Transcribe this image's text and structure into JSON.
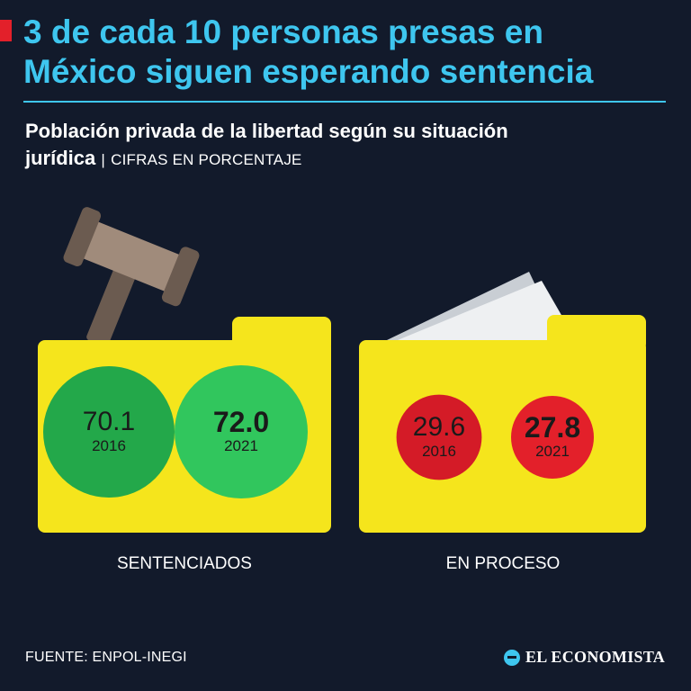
{
  "headline": {
    "line1": "3 de cada 10 personas presas en",
    "line2": "México siguen esperando sentencia"
  },
  "subtitle": {
    "bold_line1": "Población privada de la libertad según su situación",
    "bold_line2": "jurídica",
    "separator": "|",
    "unit": "CIFRAS EN PORCENTAJE"
  },
  "chart_data": {
    "type": "bubble",
    "unit": "%",
    "categories": [
      "SENTENCIADOS",
      "EN PROCESO"
    ],
    "years": [
      "2016",
      "2021"
    ],
    "groups": [
      {
        "category": "SENTENCIADOS",
        "color": "#31c65d",
        "color_dark": "#23a84a",
        "points": [
          {
            "year": "2016",
            "value": 70.1,
            "label": "70.1"
          },
          {
            "year": "2021",
            "value": 72.0,
            "label": "72.0"
          }
        ]
      },
      {
        "category": "EN PROCESO",
        "color": "#e3202a",
        "color_dark": "#d41b27",
        "points": [
          {
            "year": "2016",
            "value": 29.6,
            "label": "29.6"
          },
          {
            "year": "2021",
            "value": 27.8,
            "label": "27.8"
          }
        ]
      }
    ]
  },
  "icons": [
    "gavel-icon",
    "folder-icon",
    "documents-icon"
  ],
  "colors": {
    "background": "#121a2b",
    "accent": "#3ec6ef",
    "folder": "#f5e51c",
    "alert": "#e3202a"
  },
  "footer": {
    "source": "FUENTE: ENPOL-INEGI",
    "brand": "EL ECONOMISTA"
  }
}
